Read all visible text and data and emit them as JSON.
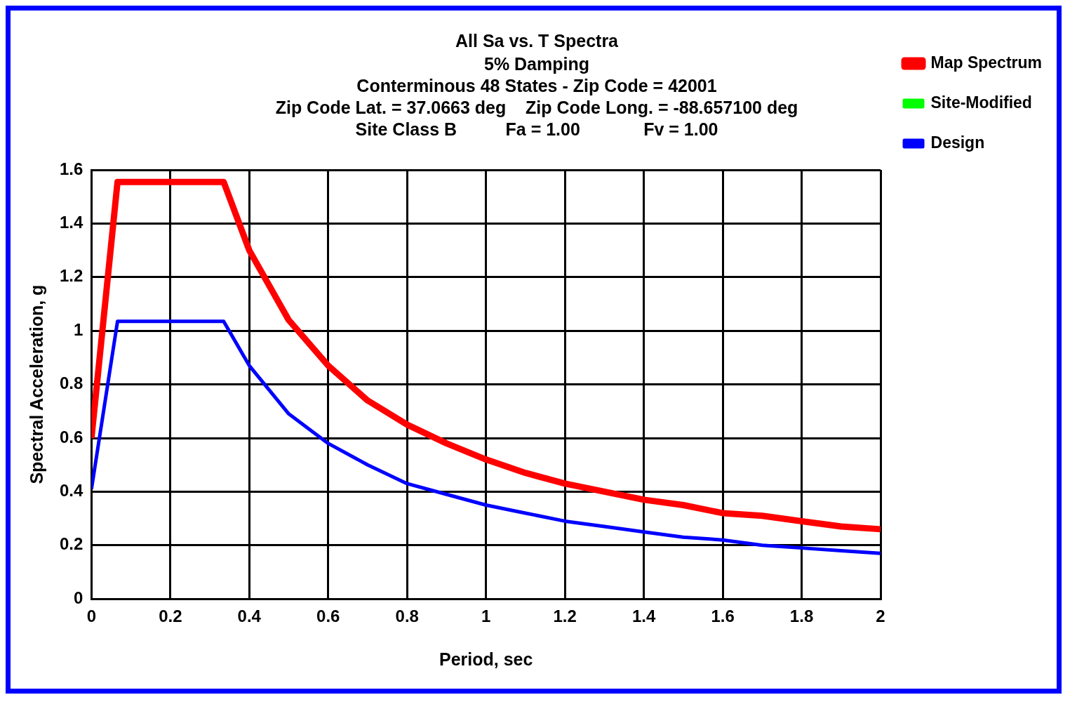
{
  "chart_data": {
    "type": "line",
    "title": "All Sa vs. T Spectra",
    "subtitle": "5% Damping\nConterminous 48 States - Zip Code = 42001\nZip Code Lat. = 37.0663 deg    Zip Code Long. = -88.657100 deg\nSite Class B          Fa = 1.00             Fv = 1.00",
    "xlabel": "Period, sec",
    "ylabel": "Spectral Acceleration, g",
    "x": [
      0,
      0.066,
      0.335,
      0.4,
      0.5,
      0.6,
      0.7,
      0.8,
      0.9,
      1.0,
      1.1,
      1.2,
      1.3,
      1.4,
      1.5,
      1.6,
      1.7,
      1.8,
      1.9,
      2.0
    ],
    "series": [
      {
        "name": "Map Spectrum",
        "color": "#ff0000",
        "values": [
          0.6,
          1.555,
          1.555,
          1.3,
          1.04,
          0.87,
          0.74,
          0.65,
          0.58,
          0.52,
          0.47,
          0.43,
          0.4,
          0.37,
          0.35,
          0.32,
          0.31,
          0.29,
          0.27,
          0.26
        ]
      },
      {
        "name": "Site-Modified",
        "color": "#00ff00",
        "values": [
          null,
          null,
          null,
          null,
          null,
          null,
          null,
          null,
          null,
          null,
          null,
          null,
          null,
          null,
          null,
          null,
          null,
          null,
          null,
          null
        ]
      },
      {
        "name": "Design",
        "color": "#0000ff",
        "values": [
          0.41,
          1.035,
          1.035,
          0.87,
          0.69,
          0.58,
          0.5,
          0.43,
          0.39,
          0.35,
          0.32,
          0.29,
          0.27,
          0.25,
          0.23,
          0.22,
          0.2,
          0.19,
          0.18,
          0.17
        ]
      }
    ],
    "xlim": [
      0,
      2
    ],
    "xticks": [
      0,
      0.2,
      0.4,
      0.6,
      0.8,
      1,
      1.2,
      1.4,
      1.6,
      1.8,
      2
    ],
    "ylim": [
      0,
      1.6
    ],
    "yticks": [
      0,
      0.2,
      0.4,
      0.6,
      0.8,
      1,
      1.2,
      1.4,
      1.6
    ],
    "grid": true,
    "legend": "right",
    "marker": "none",
    "line_style": "solid"
  }
}
